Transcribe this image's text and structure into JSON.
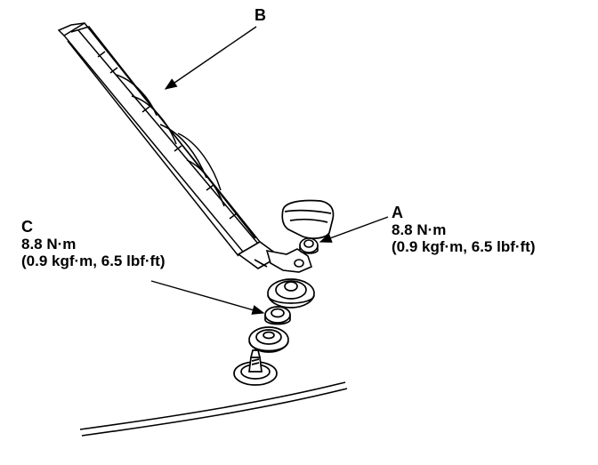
{
  "callouts": {
    "a": {
      "letter": "A",
      "torque_nm": "8.8 N·m",
      "torque_alt": "(0.9 kgf·m, 6.5 lbf·ft)"
    },
    "b": {
      "letter": "B"
    },
    "c": {
      "letter": "C",
      "torque_nm": "8.8 N·m",
      "torque_alt": "(0.9 kgf·m, 6.5 lbf·ft)"
    }
  },
  "colors": {
    "ink": "#000000",
    "paper": "#ffffff"
  },
  "icons": {
    "wiper_blade": "wiper-blade-icon",
    "wiper_arm": "wiper-arm-icon",
    "pivot_cap": "pivot-cap-icon",
    "flange_nut": "flange-nut-icon",
    "rubber_grommet": "rubber-grommet-icon",
    "washer": "washer-icon",
    "seal": "seal-icon",
    "pivot_shaft": "pivot-shaft-icon",
    "tailgate_panel": "tailgate-panel-icon"
  }
}
